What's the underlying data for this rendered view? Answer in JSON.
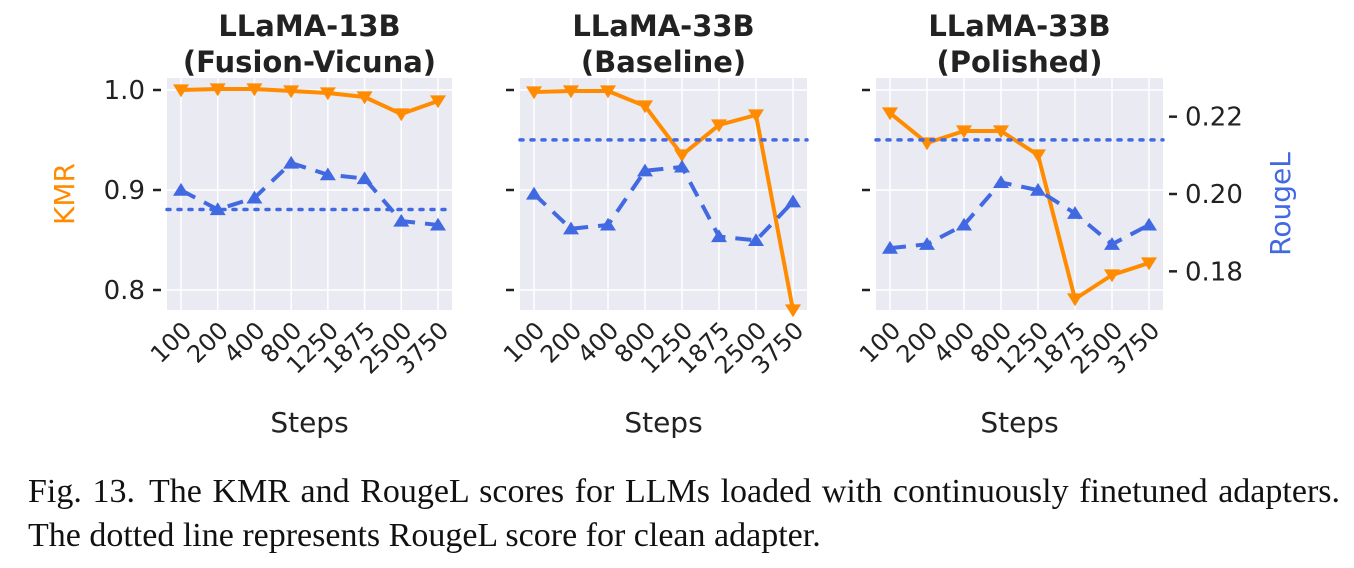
{
  "chart_data": [
    {
      "type": "line",
      "title": "LLaMA-13B\n(Fusion-Vicuna)",
      "categories": [
        "100",
        "200",
        "400",
        "800",
        "1250",
        "1875",
        "2500",
        "3750"
      ],
      "xlabel": "Steps",
      "ylabel_left": "KMR",
      "ylabel_right": "",
      "ylim_left": [
        0.78,
        1.012
      ],
      "ylim_right": [
        0.17,
        0.23
      ],
      "yticks_left": [
        "1.0",
        "0.9",
        "0.8"
      ],
      "yticks_right": [],
      "series": [
        {
          "name": "KMR",
          "axis": "left",
          "style": "solid",
          "marker": "down-triangle",
          "color": "#ff8c00",
          "values": [
            1.0,
            1.001,
            1.001,
            0.999,
            0.997,
            0.993,
            0.976,
            0.989
          ]
        },
        {
          "name": "RougeL",
          "axis": "right",
          "style": "dashed",
          "marker": "up-triangle",
          "color": "#4169e1",
          "values": [
            0.201,
            0.196,
            0.199,
            0.208,
            0.205,
            0.204,
            0.193,
            0.192
          ]
        },
        {
          "name": "Clean adapter RougeL",
          "axis": "right",
          "style": "dotted",
          "color": "#4169e1",
          "constant": 0.196
        }
      ]
    },
    {
      "type": "line",
      "title": "LLaMA-33B\n(Baseline)",
      "categories": [
        "100",
        "200",
        "400",
        "800",
        "1250",
        "1875",
        "2500",
        "3750"
      ],
      "xlabel": "Steps",
      "ylabel_left": "",
      "ylabel_right": "",
      "ylim_left": [
        0.78,
        1.012
      ],
      "ylim_right": [
        0.17,
        0.23
      ],
      "yticks_left": [],
      "yticks_right": [],
      "series": [
        {
          "name": "KMR",
          "axis": "left",
          "style": "solid",
          "marker": "down-triangle",
          "color": "#ff8c00",
          "values": [
            0.998,
            0.999,
            0.999,
            0.984,
            0.935,
            0.965,
            0.975,
            0.78
          ]
        },
        {
          "name": "RougeL",
          "axis": "right",
          "style": "dashed",
          "marker": "up-triangle",
          "color": "#4169e1",
          "values": [
            0.2,
            0.191,
            0.192,
            0.206,
            0.207,
            0.189,
            0.188,
            0.198
          ]
        },
        {
          "name": "Clean adapter RougeL",
          "axis": "right",
          "style": "dotted",
          "color": "#4169e1",
          "constant": 0.214
        }
      ]
    },
    {
      "type": "line",
      "title": "LLaMA-33B\n(Polished)",
      "categories": [
        "100",
        "200",
        "400",
        "800",
        "1250",
        "1875",
        "2500",
        "3750"
      ],
      "xlabel": "Steps",
      "ylabel_left": "",
      "ylabel_right": "RougeL",
      "ylim_left": [
        0.78,
        1.012
      ],
      "ylim_right": [
        0.17,
        0.23
      ],
      "yticks_left": [],
      "yticks_right": [
        "0.22",
        "0.20",
        "0.18"
      ],
      "series": [
        {
          "name": "KMR",
          "axis": "left",
          "style": "solid",
          "marker": "down-triangle",
          "color": "#ff8c00",
          "values": [
            0.977,
            0.947,
            0.959,
            0.959,
            0.935,
            0.791,
            0.815,
            0.827
          ]
        },
        {
          "name": "RougeL",
          "axis": "right",
          "style": "dashed",
          "marker": "up-triangle",
          "color": "#4169e1",
          "values": [
            0.186,
            0.187,
            0.192,
            0.203,
            0.201,
            0.195,
            0.187,
            0.192
          ]
        },
        {
          "name": "Clean adapter RougeL",
          "axis": "right",
          "style": "dotted",
          "color": "#4169e1",
          "constant": 0.214
        }
      ]
    }
  ],
  "caption": {
    "label": "Fig. 13.",
    "text": "The KMR and RougeL scores for LLMs loaded with continuously finetuned adapters. The dotted line represents RougeL score for clean adapter."
  }
}
